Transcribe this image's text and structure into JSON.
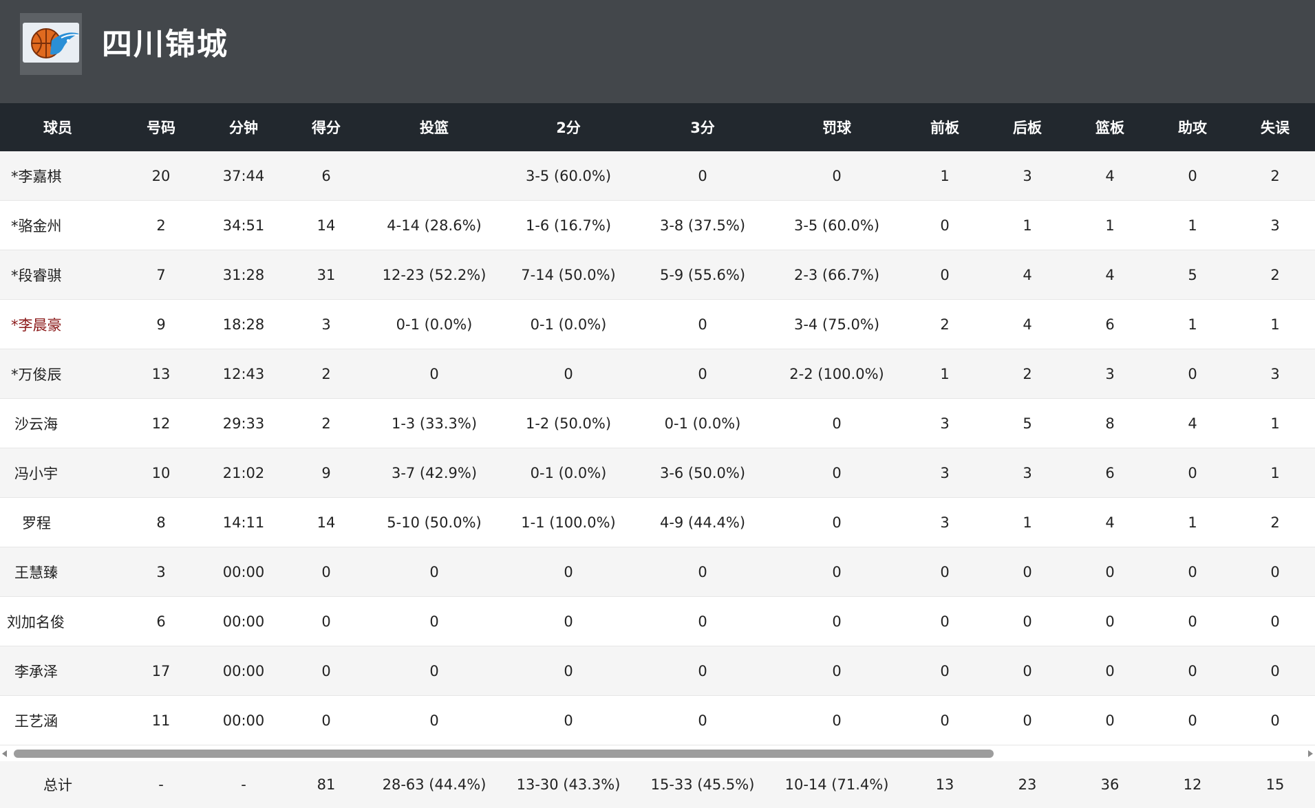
{
  "team": {
    "name": "四川锦城",
    "logo_icon": "basketball-team-logo"
  },
  "table": {
    "headers": [
      "球员",
      "号码",
      "分钟",
      "得分",
      "投篮",
      "2分",
      "3分",
      "罚球",
      "前板",
      "后板",
      "篮板",
      "助攻",
      "失误"
    ],
    "rows": [
      [
        "*李嘉棋",
        "20",
        "37:44",
        "6",
        "",
        "3-5 (60.0%)",
        "0",
        "0",
        "1",
        "3",
        "4",
        "0",
        "2"
      ],
      [
        "*骆金州",
        "2",
        "34:51",
        "14",
        "4-14 (28.6%)",
        "1-6 (16.7%)",
        "3-8 (37.5%)",
        "3-5 (60.0%)",
        "0",
        "1",
        "1",
        "1",
        "3"
      ],
      [
        "*段睿骐",
        "7",
        "31:28",
        "31",
        "12-23 (52.2%)",
        "7-14 (50.0%)",
        "5-9 (55.6%)",
        "2-3 (66.7%)",
        "0",
        "4",
        "4",
        "5",
        "2"
      ],
      [
        "*李晨豪",
        "9",
        "18:28",
        "3",
        "0-1 (0.0%)",
        "0-1 (0.0%)",
        "0",
        "3-4 (75.0%)",
        "2",
        "4",
        "6",
        "1",
        "1"
      ],
      [
        "*万俊辰",
        "13",
        "12:43",
        "2",
        "0",
        "0",
        "0",
        "2-2 (100.0%)",
        "1",
        "2",
        "3",
        "0",
        "3"
      ],
      [
        "沙云海",
        "12",
        "29:33",
        "2",
        "1-3 (33.3%)",
        "1-2 (50.0%)",
        "0-1 (0.0%)",
        "0",
        "3",
        "5",
        "8",
        "4",
        "1"
      ],
      [
        "冯小宇",
        "10",
        "21:02",
        "9",
        "3-7 (42.9%)",
        "0-1 (0.0%)",
        "3-6 (50.0%)",
        "0",
        "3",
        "3",
        "6",
        "0",
        "1"
      ],
      [
        "罗程",
        "8",
        "14:11",
        "14",
        "5-10 (50.0%)",
        "1-1 (100.0%)",
        "4-9 (44.4%)",
        "0",
        "3",
        "1",
        "4",
        "1",
        "2"
      ],
      [
        "王慧臻",
        "3",
        "00:00",
        "0",
        "0",
        "0",
        "0",
        "0",
        "0",
        "0",
        "0",
        "0",
        "0"
      ],
      [
        "刘加名俊",
        "6",
        "00:00",
        "0",
        "0",
        "0",
        "0",
        "0",
        "0",
        "0",
        "0",
        "0",
        "0"
      ],
      [
        "李承泽",
        "17",
        "00:00",
        "0",
        "0",
        "0",
        "0",
        "0",
        "0",
        "0",
        "0",
        "0",
        "0"
      ],
      [
        "王艺涵",
        "11",
        "00:00",
        "0",
        "0",
        "0",
        "0",
        "0",
        "0",
        "0",
        "0",
        "0",
        "0"
      ]
    ],
    "totals": [
      "总计",
      "-",
      "-",
      "81",
      "28-63 (44.4%)",
      "13-30 (43.3%)",
      "15-33 (45.5%)",
      "10-14 (71.4%)",
      "13",
      "23",
      "36",
      "12",
      "15"
    ]
  },
  "colors": {
    "header_bg": "#43474b",
    "table_header_bg": "#22282e",
    "highlight_name": "#8b1a1a"
  }
}
